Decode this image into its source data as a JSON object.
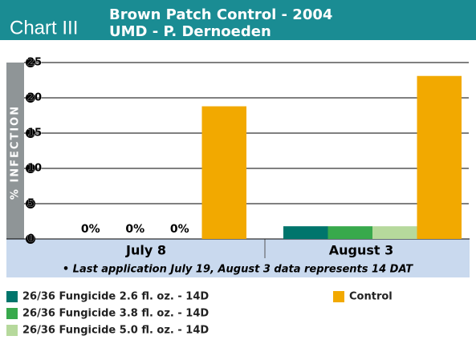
{
  "chart_data": {
    "type": "bar",
    "label": "Chart III",
    "title": "Brown Patch Control - 2004",
    "subtitle": "UMD - P. Dernoeden",
    "ylabel": "% INFECTION",
    "footnote": "• Last application July 19, August 3 data represents 14 DAT",
    "categories": [
      "July 8",
      "August 3"
    ],
    "series": [
      {
        "name": "26/36 Fungicide 2.6 fl. oz. - 14D",
        "color": "#00756c",
        "values": [
          0,
          1.8
        ],
        "value_labels": [
          "0%",
          null
        ]
      },
      {
        "name": "26/36 Fungicide 3.8 fl. oz. - 14D",
        "color": "#38a94c",
        "values": [
          0,
          1.8
        ],
        "value_labels": [
          "0%",
          null
        ]
      },
      {
        "name": "26/36 Fungicide 5.0 fl. oz. - 14D",
        "color": "#b6d99c",
        "values": [
          0,
          1.8
        ],
        "value_labels": [
          "0%",
          null
        ]
      },
      {
        "name": "Control",
        "color": "#f2a900",
        "values": [
          18.8,
          23.1
        ]
      }
    ],
    "ylim": [
      0,
      25
    ],
    "yticks": [
      0,
      5,
      10,
      15,
      20,
      25
    ],
    "grid": true
  }
}
